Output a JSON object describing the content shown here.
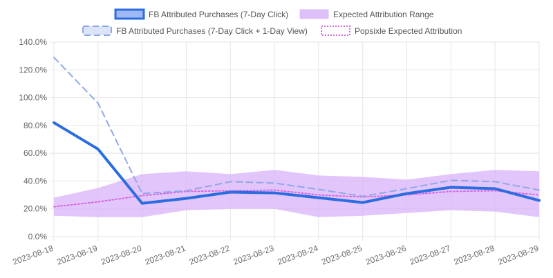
{
  "chart_data": {
    "type": "line",
    "title": "",
    "xlabel": "",
    "ylabel": "",
    "x": [
      "2023-08-18",
      "2023-08-19",
      "2023-08-20",
      "2023-08-21",
      "2023-08-22",
      "2023-08-23",
      "2023-08-24",
      "2023-08-25",
      "2023-08-26",
      "2023-08-27",
      "2023-08-28",
      "2023-08-29"
    ],
    "ylim": [
      0,
      140
    ],
    "y_ticks": [
      "0.0%",
      "20.0%",
      "40.0%",
      "60.0%",
      "80.0%",
      "100.0%",
      "120.0%",
      "140.0%"
    ],
    "grid": true,
    "legend_position": "top",
    "series": [
      {
        "name": "FB Attributed Purchases (7-Day Click)",
        "style": "solid-thick",
        "color": "#2b6de0",
        "values": [
          82,
          63,
          24,
          27.5,
          32,
          31.5,
          28,
          24.5,
          31,
          35.5,
          34.5,
          26
        ]
      },
      {
        "name": "Expected Attribution Range",
        "style": "band",
        "color": "#d8b2f8",
        "upper": [
          28,
          35,
          45,
          47,
          45,
          48,
          44,
          43,
          41,
          45,
          48,
          47
        ],
        "lower": [
          15,
          14,
          14,
          19,
          20,
          20,
          14,
          15,
          17,
          19,
          18,
          14
        ]
      },
      {
        "name": "FB Attributed Purchases (7-Day Click + 1-Day View)",
        "style": "dashed",
        "color": "#8fa8e8",
        "values": [
          129,
          96,
          31,
          33,
          39.5,
          38.5,
          34,
          29,
          34.5,
          40.5,
          39.5,
          33.5
        ]
      },
      {
        "name": "Popsixle Expected Attribution",
        "style": "dotted",
        "color": "#d768e0",
        "values": [
          21.5,
          25,
          29.5,
          32.5,
          33,
          33.5,
          30,
          28.5,
          30,
          32.5,
          33,
          30
        ]
      }
    ]
  }
}
